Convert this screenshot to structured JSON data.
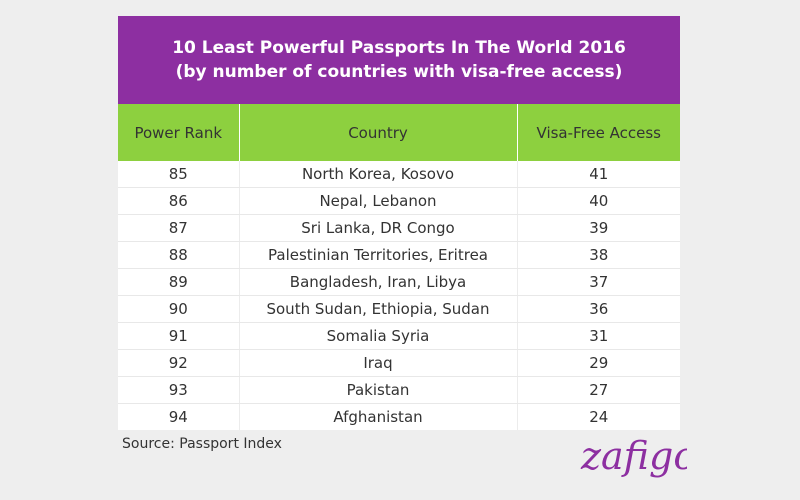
{
  "title": {
    "line1": "10 Least Powerful Passports In The World 2016",
    "line2": "(by number of countries with visa-free access)"
  },
  "columns": [
    "Power Rank",
    "Country",
    "Visa-Free Access"
  ],
  "rows": [
    {
      "rank": "85",
      "country": "North Korea, Kosovo",
      "visa": "41"
    },
    {
      "rank": "86",
      "country": "Nepal, Lebanon",
      "visa": "40"
    },
    {
      "rank": "87",
      "country": "Sri Lanka, DR Congo",
      "visa": "39"
    },
    {
      "rank": "88",
      "country": "Palestinian Territories, Eritrea",
      "visa": "38"
    },
    {
      "rank": "89",
      "country": "Bangladesh, Iran, Libya",
      "visa": "37"
    },
    {
      "rank": "90",
      "country": "South Sudan, Ethiopia, Sudan",
      "visa": "36"
    },
    {
      "rank": "91",
      "country": "Somalia Syria",
      "visa": "31"
    },
    {
      "rank": "92",
      "country": "Iraq",
      "visa": "29"
    },
    {
      "rank": "93",
      "country": "Pakistan",
      "visa": "27"
    },
    {
      "rank": "94",
      "country": "Afghanistan",
      "visa": "24"
    }
  ],
  "source": "Source: Passport Index",
  "logo_text": "zafigo",
  "colors": {
    "title_background": "#8d2fa1",
    "header_background": "#8dd03f",
    "page_background": "#eeeeee"
  },
  "chart_data": {
    "type": "table",
    "title": "10 Least Powerful Passports In The World 2016",
    "subtitle": "(by number of countries with visa-free access)",
    "columns": [
      "Power Rank",
      "Country",
      "Visa-Free Access"
    ],
    "rows": [
      [
        85,
        "North Korea, Kosovo",
        41
      ],
      [
        86,
        "Nepal, Lebanon",
        40
      ],
      [
        87,
        "Sri Lanka, DR Congo",
        39
      ],
      [
        88,
        "Palestinian Territories, Eritrea",
        38
      ],
      [
        89,
        "Bangladesh, Iran, Libya",
        37
      ],
      [
        90,
        "South Sudan, Ethiopia, Sudan",
        36
      ],
      [
        91,
        "Somalia Syria",
        31
      ],
      [
        92,
        "Iraq",
        29
      ],
      [
        93,
        "Pakistan",
        27
      ],
      [
        94,
        "Afghanistan",
        24
      ]
    ]
  }
}
